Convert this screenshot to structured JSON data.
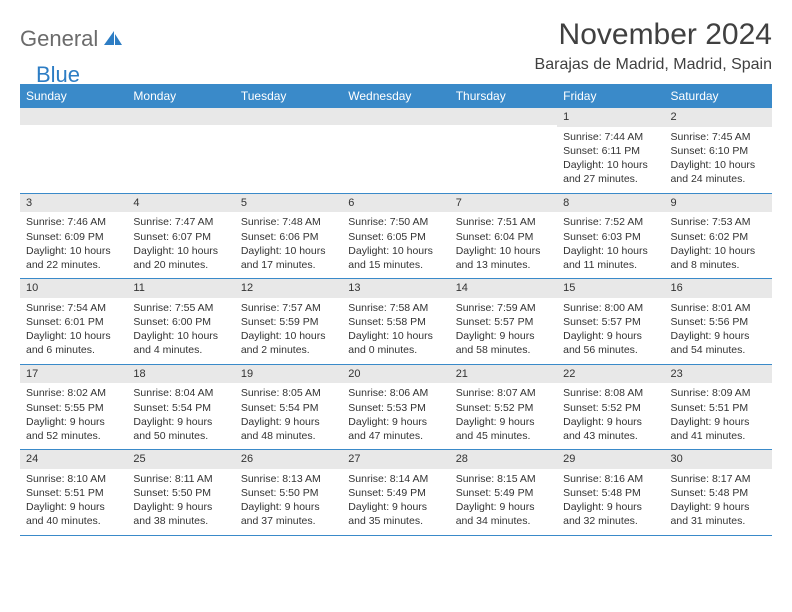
{
  "brand": {
    "text_gray": "General",
    "text_blue": "Blue"
  },
  "title": "November 2024",
  "location": "Barajas de Madrid, Madrid, Spain",
  "colors": {
    "header_bg": "#3a8ac9",
    "header_text": "#ffffff",
    "daynum_bg": "#e8e8e8",
    "border": "#3a8ac9",
    "logo_gray": "#6b6b6b",
    "logo_blue": "#2d7dc4",
    "title_color": "#404040"
  },
  "day_headers": [
    "Sunday",
    "Monday",
    "Tuesday",
    "Wednesday",
    "Thursday",
    "Friday",
    "Saturday"
  ],
  "weeks": [
    [
      {
        "num": "",
        "sunrise": "",
        "sunset": "",
        "daylight": ""
      },
      {
        "num": "",
        "sunrise": "",
        "sunset": "",
        "daylight": ""
      },
      {
        "num": "",
        "sunrise": "",
        "sunset": "",
        "daylight": ""
      },
      {
        "num": "",
        "sunrise": "",
        "sunset": "",
        "daylight": ""
      },
      {
        "num": "",
        "sunrise": "",
        "sunset": "",
        "daylight": ""
      },
      {
        "num": "1",
        "sunrise": "Sunrise: 7:44 AM",
        "sunset": "Sunset: 6:11 PM",
        "daylight": "Daylight: 10 hours and 27 minutes."
      },
      {
        "num": "2",
        "sunrise": "Sunrise: 7:45 AM",
        "sunset": "Sunset: 6:10 PM",
        "daylight": "Daylight: 10 hours and 24 minutes."
      }
    ],
    [
      {
        "num": "3",
        "sunrise": "Sunrise: 7:46 AM",
        "sunset": "Sunset: 6:09 PM",
        "daylight": "Daylight: 10 hours and 22 minutes."
      },
      {
        "num": "4",
        "sunrise": "Sunrise: 7:47 AM",
        "sunset": "Sunset: 6:07 PM",
        "daylight": "Daylight: 10 hours and 20 minutes."
      },
      {
        "num": "5",
        "sunrise": "Sunrise: 7:48 AM",
        "sunset": "Sunset: 6:06 PM",
        "daylight": "Daylight: 10 hours and 17 minutes."
      },
      {
        "num": "6",
        "sunrise": "Sunrise: 7:50 AM",
        "sunset": "Sunset: 6:05 PM",
        "daylight": "Daylight: 10 hours and 15 minutes."
      },
      {
        "num": "7",
        "sunrise": "Sunrise: 7:51 AM",
        "sunset": "Sunset: 6:04 PM",
        "daylight": "Daylight: 10 hours and 13 minutes."
      },
      {
        "num": "8",
        "sunrise": "Sunrise: 7:52 AM",
        "sunset": "Sunset: 6:03 PM",
        "daylight": "Daylight: 10 hours and 11 minutes."
      },
      {
        "num": "9",
        "sunrise": "Sunrise: 7:53 AM",
        "sunset": "Sunset: 6:02 PM",
        "daylight": "Daylight: 10 hours and 8 minutes."
      }
    ],
    [
      {
        "num": "10",
        "sunrise": "Sunrise: 7:54 AM",
        "sunset": "Sunset: 6:01 PM",
        "daylight": "Daylight: 10 hours and 6 minutes."
      },
      {
        "num": "11",
        "sunrise": "Sunrise: 7:55 AM",
        "sunset": "Sunset: 6:00 PM",
        "daylight": "Daylight: 10 hours and 4 minutes."
      },
      {
        "num": "12",
        "sunrise": "Sunrise: 7:57 AM",
        "sunset": "Sunset: 5:59 PM",
        "daylight": "Daylight: 10 hours and 2 minutes."
      },
      {
        "num": "13",
        "sunrise": "Sunrise: 7:58 AM",
        "sunset": "Sunset: 5:58 PM",
        "daylight": "Daylight: 10 hours and 0 minutes."
      },
      {
        "num": "14",
        "sunrise": "Sunrise: 7:59 AM",
        "sunset": "Sunset: 5:57 PM",
        "daylight": "Daylight: 9 hours and 58 minutes."
      },
      {
        "num": "15",
        "sunrise": "Sunrise: 8:00 AM",
        "sunset": "Sunset: 5:57 PM",
        "daylight": "Daylight: 9 hours and 56 minutes."
      },
      {
        "num": "16",
        "sunrise": "Sunrise: 8:01 AM",
        "sunset": "Sunset: 5:56 PM",
        "daylight": "Daylight: 9 hours and 54 minutes."
      }
    ],
    [
      {
        "num": "17",
        "sunrise": "Sunrise: 8:02 AM",
        "sunset": "Sunset: 5:55 PM",
        "daylight": "Daylight: 9 hours and 52 minutes."
      },
      {
        "num": "18",
        "sunrise": "Sunrise: 8:04 AM",
        "sunset": "Sunset: 5:54 PM",
        "daylight": "Daylight: 9 hours and 50 minutes."
      },
      {
        "num": "19",
        "sunrise": "Sunrise: 8:05 AM",
        "sunset": "Sunset: 5:54 PM",
        "daylight": "Daylight: 9 hours and 48 minutes."
      },
      {
        "num": "20",
        "sunrise": "Sunrise: 8:06 AM",
        "sunset": "Sunset: 5:53 PM",
        "daylight": "Daylight: 9 hours and 47 minutes."
      },
      {
        "num": "21",
        "sunrise": "Sunrise: 8:07 AM",
        "sunset": "Sunset: 5:52 PM",
        "daylight": "Daylight: 9 hours and 45 minutes."
      },
      {
        "num": "22",
        "sunrise": "Sunrise: 8:08 AM",
        "sunset": "Sunset: 5:52 PM",
        "daylight": "Daylight: 9 hours and 43 minutes."
      },
      {
        "num": "23",
        "sunrise": "Sunrise: 8:09 AM",
        "sunset": "Sunset: 5:51 PM",
        "daylight": "Daylight: 9 hours and 41 minutes."
      }
    ],
    [
      {
        "num": "24",
        "sunrise": "Sunrise: 8:10 AM",
        "sunset": "Sunset: 5:51 PM",
        "daylight": "Daylight: 9 hours and 40 minutes."
      },
      {
        "num": "25",
        "sunrise": "Sunrise: 8:11 AM",
        "sunset": "Sunset: 5:50 PM",
        "daylight": "Daylight: 9 hours and 38 minutes."
      },
      {
        "num": "26",
        "sunrise": "Sunrise: 8:13 AM",
        "sunset": "Sunset: 5:50 PM",
        "daylight": "Daylight: 9 hours and 37 minutes."
      },
      {
        "num": "27",
        "sunrise": "Sunrise: 8:14 AM",
        "sunset": "Sunset: 5:49 PM",
        "daylight": "Daylight: 9 hours and 35 minutes."
      },
      {
        "num": "28",
        "sunrise": "Sunrise: 8:15 AM",
        "sunset": "Sunset: 5:49 PM",
        "daylight": "Daylight: 9 hours and 34 minutes."
      },
      {
        "num": "29",
        "sunrise": "Sunrise: 8:16 AM",
        "sunset": "Sunset: 5:48 PM",
        "daylight": "Daylight: 9 hours and 32 minutes."
      },
      {
        "num": "30",
        "sunrise": "Sunrise: 8:17 AM",
        "sunset": "Sunset: 5:48 PM",
        "daylight": "Daylight: 9 hours and 31 minutes."
      }
    ]
  ]
}
